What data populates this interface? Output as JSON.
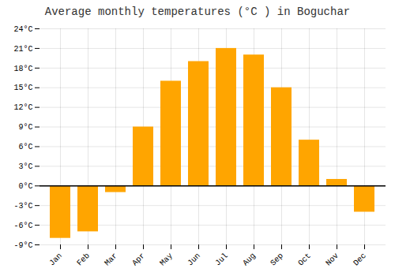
{
  "chart_data": {
    "type": "bar",
    "title": "Average monthly temperatures (°C ) in Boguchar",
    "categories": [
      "Jan",
      "Feb",
      "Mar",
      "Apr",
      "May",
      "Jun",
      "Jul",
      "Aug",
      "Sep",
      "Oct",
      "Nov",
      "Dec"
    ],
    "values": [
      -8,
      -7,
      -1,
      9,
      16,
      19,
      21,
      20,
      15,
      7,
      1,
      -4
    ],
    "color": "#FFA500",
    "ylim": [
      -9,
      24
    ],
    "yticks": [
      {
        "value": -9,
        "label": "-9°C"
      },
      {
        "value": -6,
        "label": "-6°C"
      },
      {
        "value": -3,
        "label": "-3°C"
      },
      {
        "value": 0,
        "label": "0°C"
      },
      {
        "value": 3,
        "label": "3°C"
      },
      {
        "value": 6,
        "label": "6°C"
      },
      {
        "value": 9,
        "label": "9°C"
      },
      {
        "value": 12,
        "label": "12°C"
      },
      {
        "value": 15,
        "label": "15°C"
      },
      {
        "value": 18,
        "label": "18°C"
      },
      {
        "value": 21,
        "label": "21°C"
      },
      {
        "value": 24,
        "label": "24°C"
      }
    ],
    "grid": true
  }
}
